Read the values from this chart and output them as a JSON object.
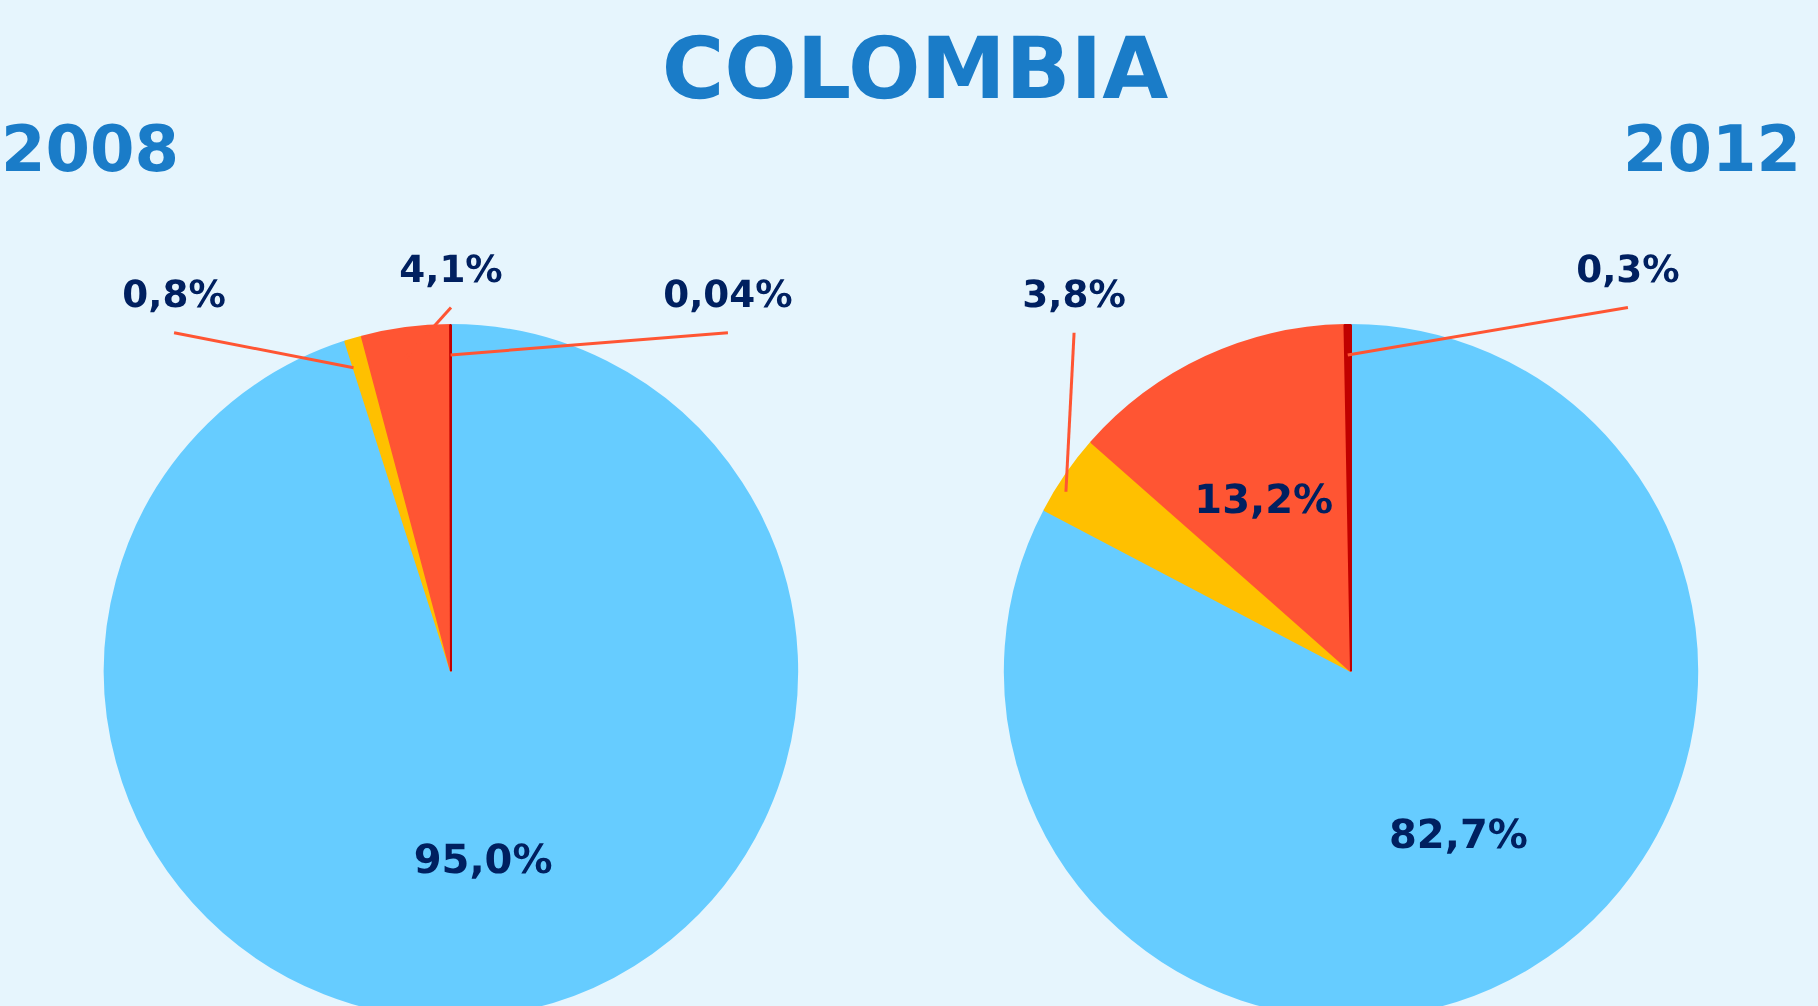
{
  "chart_data": [
    {
      "type": "pie",
      "title": "COLOMBIA",
      "subtitle": "2008",
      "categories": [
        null,
        null,
        null,
        null
      ],
      "values": [
        95.0,
        0.8,
        4.1,
        0.04
      ],
      "value_labels": [
        "95,0%",
        "0,8%",
        "4,1%",
        "0,04%"
      ],
      "colors": [
        "#66ccff",
        "#ffc000",
        "#ff5533",
        "#c00000"
      ]
    },
    {
      "type": "pie",
      "subtitle": "2012",
      "categories": [
        null,
        null,
        null,
        null
      ],
      "values": [
        82.7,
        3.8,
        13.2,
        0.3
      ],
      "value_labels": [
        "82,7%",
        "3,8%",
        "13,2%",
        "0,3%"
      ],
      "colors": [
        "#66ccff",
        "#ffc000",
        "#ff5533",
        "#c00000"
      ]
    }
  ]
}
